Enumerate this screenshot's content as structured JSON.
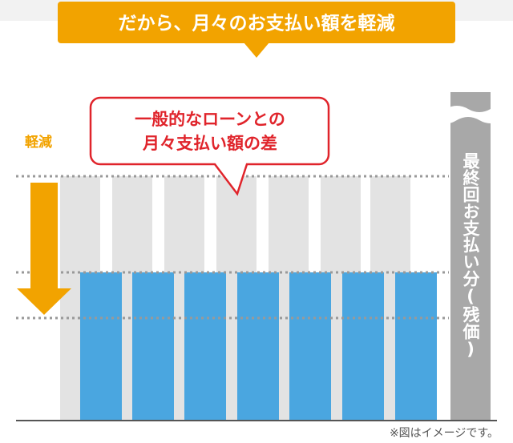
{
  "banner": "だから、月々のお支払い額を軽減",
  "callout": {
    "lines": [
      "一般的なローンとの",
      "月々支払い額の差"
    ]
  },
  "arrow_label": "軽減",
  "final_payment_label": "最終回お支払い分(残価)",
  "note": "※図はイメージです。"
}
